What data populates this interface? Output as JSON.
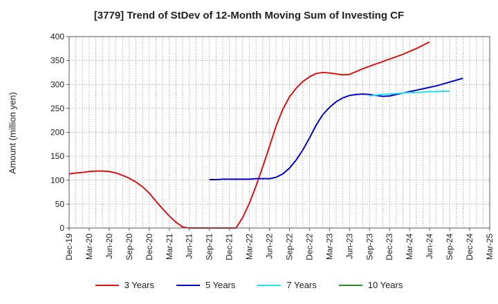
{
  "chart_data": {
    "type": "line",
    "title": "[3779]  Trend of StDev of 12-Month Moving Sum of Investing CF",
    "xlabel": "",
    "ylabel": "Amount (million yen)",
    "ylim": [
      0,
      400
    ],
    "yticks": [
      0,
      50,
      100,
      150,
      200,
      250,
      300,
      350,
      400
    ],
    "xticks": [
      "Dec-19",
      "Mar-20",
      "Jun-20",
      "Sep-20",
      "Dec-20",
      "Mar-21",
      "Jun-21",
      "Sep-21",
      "Dec-21",
      "Mar-22",
      "Jun-22",
      "Sep-22",
      "Dec-22",
      "Mar-23",
      "Jun-23",
      "Sep-23",
      "Dec-23",
      "Mar-24",
      "Jun-24",
      "Sep-24",
      "Dec-24",
      "Mar-25"
    ],
    "grid": true,
    "legend_position": "bottom",
    "series": [
      {
        "name": "3 Years",
        "color": "#dd1111",
        "start": "Dec-19",
        "values": [
          113,
          115,
          116,
          118,
          119,
          119,
          118,
          115,
          110,
          104,
          96,
          86,
          73,
          56,
          40,
          25,
          12,
          2,
          0,
          0,
          0,
          0,
          0,
          0,
          0,
          0,
          22,
          52,
          88,
          128,
          170,
          213,
          248,
          274,
          292,
          306,
          316,
          323,
          325,
          324,
          322,
          320,
          321,
          327,
          333,
          338,
          343,
          348,
          353,
          358,
          363,
          369,
          375,
          382,
          389
        ]
      },
      {
        "name": "5 Years",
        "color": "#0000cc",
        "start": "Sep-21",
        "values": [
          101,
          101,
          102,
          102,
          102,
          102,
          102,
          103,
          103,
          103,
          106,
          113,
          125,
          142,
          163,
          188,
          215,
          237,
          252,
          264,
          272,
          277,
          279,
          280,
          279,
          277,
          275,
          276,
          279,
          282,
          285,
          288,
          291,
          294,
          297,
          301,
          305,
          309,
          313
        ]
      },
      {
        "name": "7 Years",
        "color": "#22e5ee",
        "start": "Sep-23",
        "values": [
          276,
          278,
          279,
          280,
          281,
          282,
          283,
          283,
          284,
          285,
          285,
          286,
          286
        ]
      },
      {
        "name": "10 Years",
        "color": "#228822",
        "start": "Sep-24",
        "values": []
      }
    ]
  }
}
